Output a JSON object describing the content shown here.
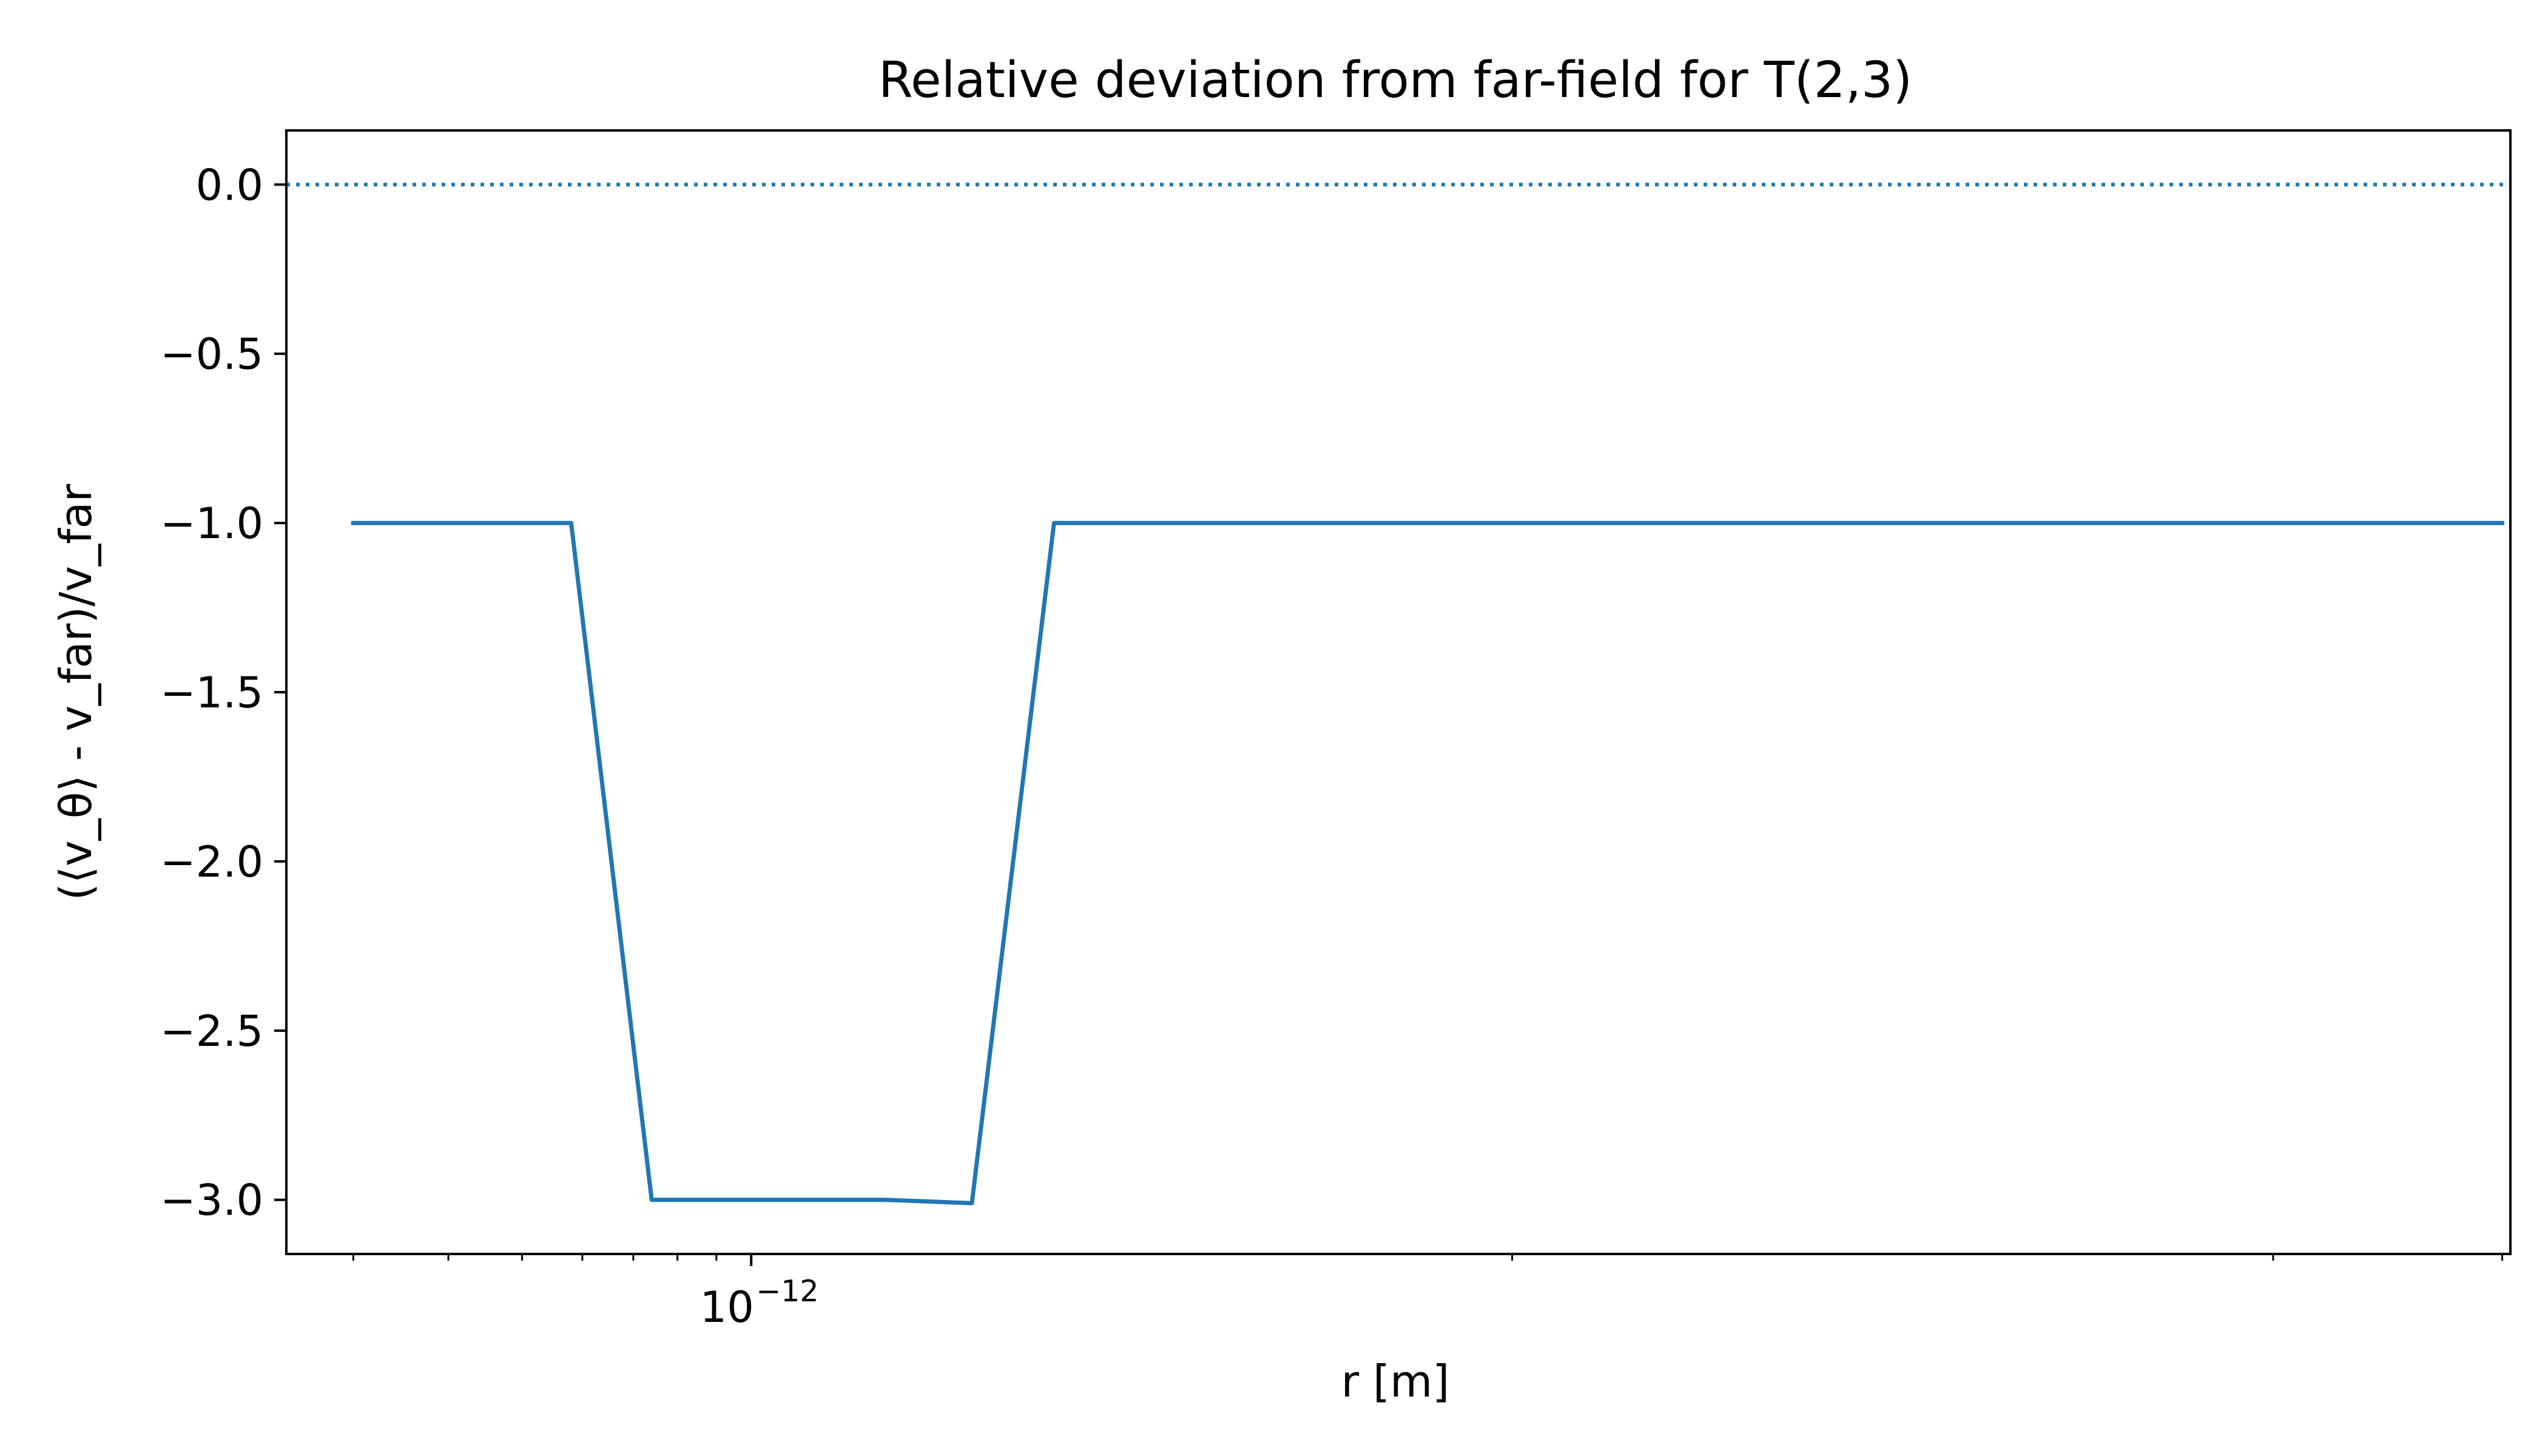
{
  "chart_data": {
    "type": "line",
    "title": "Relative deviation from far-field for T(2,3)",
    "xlabel": "r [m]",
    "ylabel": "(⟨v_θ⟩ - v_far)/v_far",
    "xscale": "log",
    "xlim": [
      2.45e-13,
      2.05e-10
    ],
    "ylim": [
      -3.16,
      0.16
    ],
    "x_major_ticks": [
      {
        "value": 1e-12,
        "base": "10",
        "exponent": "−12"
      }
    ],
    "x_minor_ticks": [
      3e-13,
      4e-13,
      5e-13,
      6e-13,
      7e-13,
      8e-13,
      9e-13,
      1e-11,
      1e-10,
      2e-10
    ],
    "y_ticks": [
      {
        "value": 0.0,
        "label": "0.0"
      },
      {
        "value": -0.5,
        "label": "−0.5"
      },
      {
        "value": -1.0,
        "label": "−1.0"
      },
      {
        "value": -1.5,
        "label": "−1.5"
      },
      {
        "value": -2.0,
        "label": "−2.0"
      },
      {
        "value": -2.5,
        "label": "−2.5"
      },
      {
        "value": -3.0,
        "label": "−3.0"
      }
    ],
    "reference_line": {
      "y": 0.0,
      "style": "dotted",
      "color": "#1f77b4"
    },
    "series": [
      {
        "color": "#1f77b4",
        "x": [
          3e-13,
          3.5e-13,
          4e-13,
          4.6e-13,
          5.8e-13,
          7.4e-13,
          9.4e-13,
          1.2e-12,
          1.5e-12,
          1.95e-12,
          2.5e-12,
          3.2e-12,
          4.1e-12,
          5.2e-12,
          6.6e-12,
          8.5e-12,
          1.08e-11,
          1.38e-11,
          1.76e-11,
          2.24e-11,
          2.86e-11,
          3.65e-11,
          4.65e-11,
          5.93e-11,
          7.56e-11,
          9.64e-11,
          1.23e-10,
          1.57e-10,
          2e-10
        ],
        "y": [
          -1.0,
          -1.0,
          -1.0,
          -1.0,
          -1.0,
          -3.0,
          -3.0,
          -3.0,
          -3.0,
          -3.01,
          -1.0,
          -1.0,
          -1.0,
          -1.0,
          -1.0,
          -1.0,
          -1.0,
          -1.0,
          -1.0,
          -1.0,
          -1.0,
          -1.0,
          -1.0,
          -1.0,
          -1.0,
          -1.0,
          -1.0,
          -1.0,
          -1.0
        ]
      }
    ],
    "grid": false,
    "legend": "none"
  }
}
